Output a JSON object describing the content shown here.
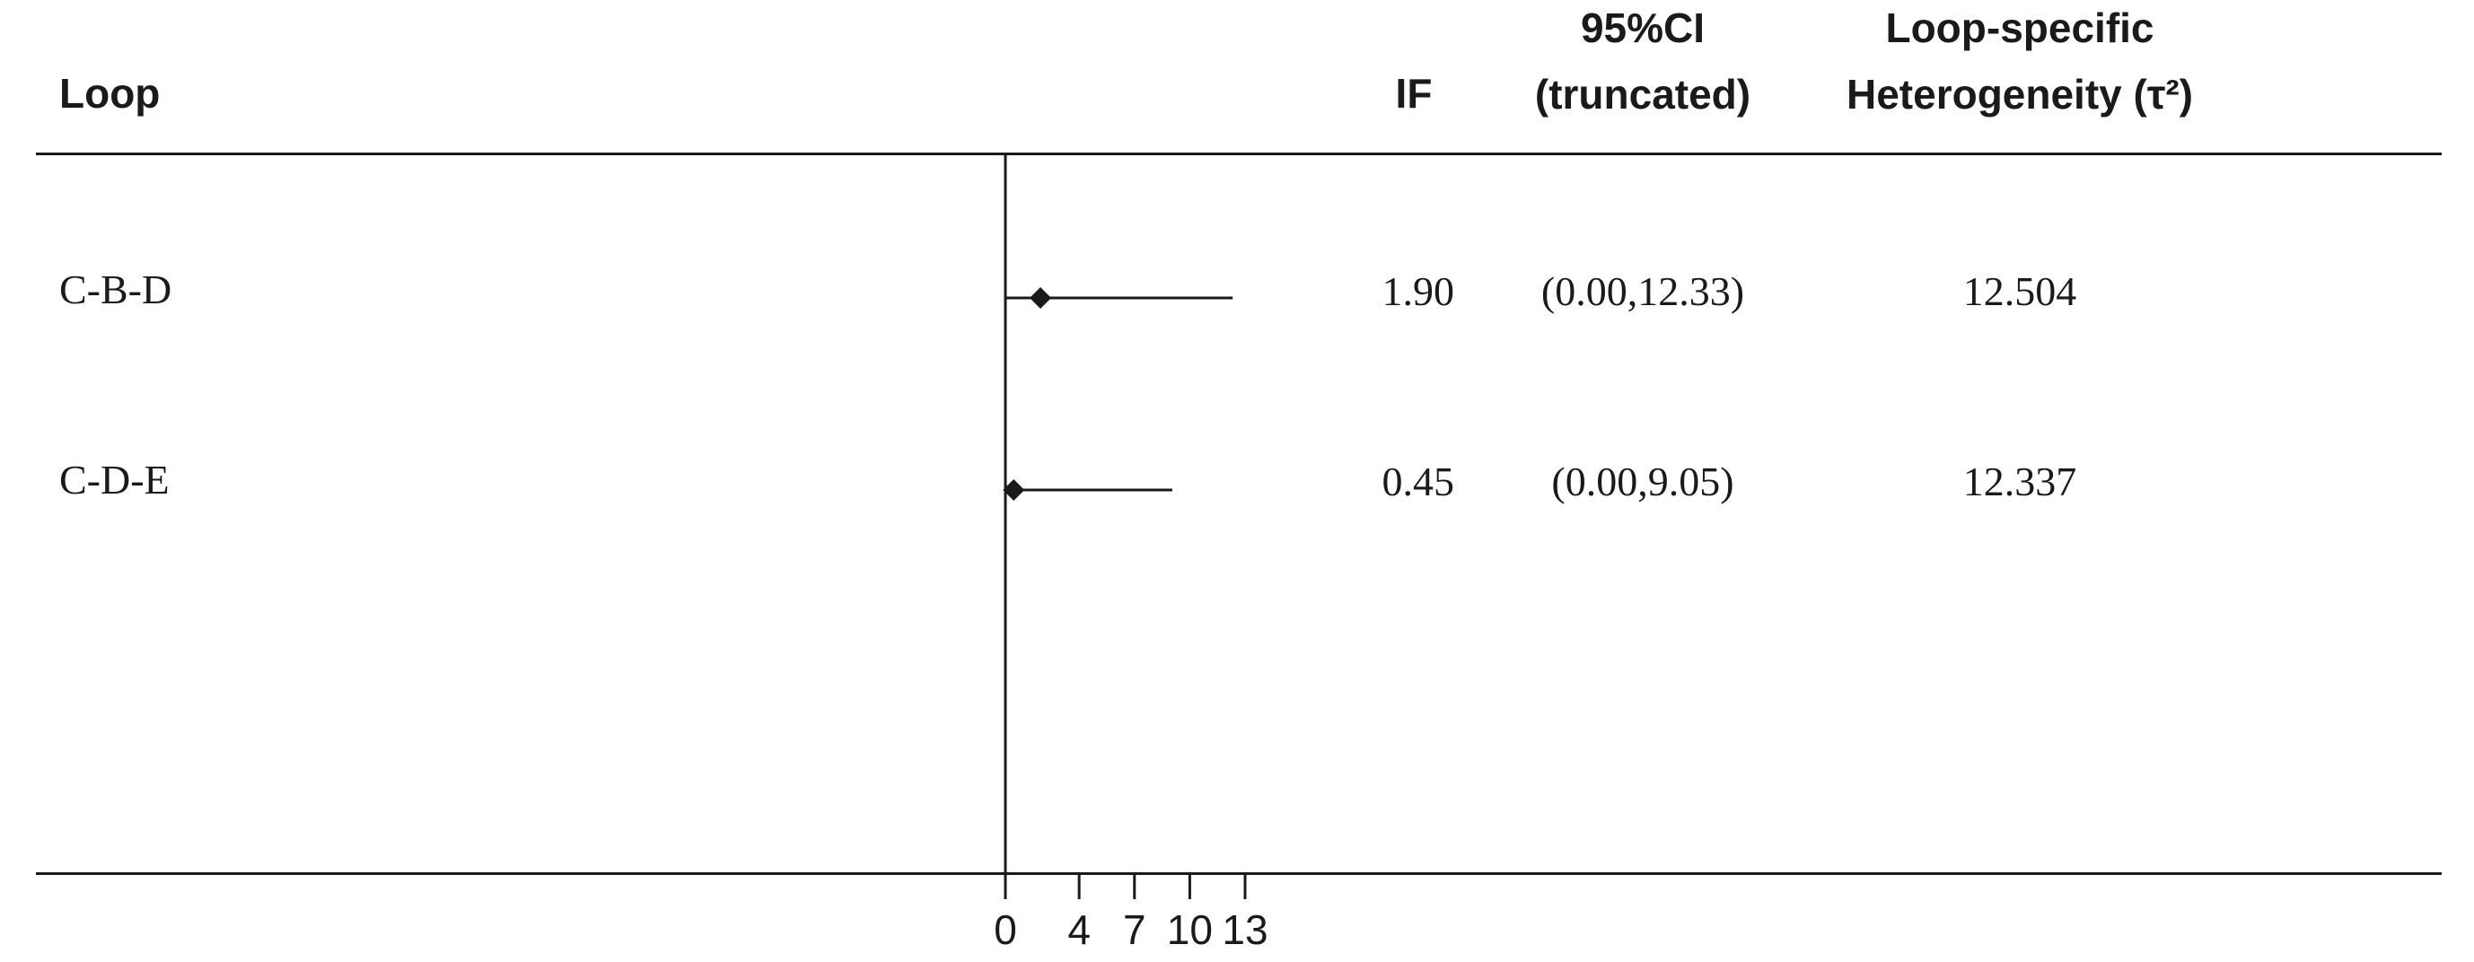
{
  "chart_data": {
    "type": "forest",
    "columns": {
      "loop": "Loop",
      "if": "IF",
      "ci_line1": "95%CI",
      "ci_line2": "(truncated)",
      "het_line1": "Loop-specific",
      "het_line2": "Heterogeneity (τ²)"
    },
    "rows": [
      {
        "loop": "C-B-D",
        "if": 1.9,
        "if_label": "1.90",
        "ci_low": 0.0,
        "ci_high": 12.33,
        "ci_label": "(0.00,12.33)",
        "tau2_label": "12.504"
      },
      {
        "loop": "C-D-E",
        "if": 0.45,
        "if_label": "0.45",
        "ci_low": 0.0,
        "ci_high": 9.05,
        "ci_label": "(0.00,9.05)",
        "tau2_label": "12.337"
      }
    ],
    "x_ticks": [
      0,
      4,
      7,
      10,
      13
    ],
    "x_tick_labels": [
      "0",
      "4",
      "7",
      "10",
      "13"
    ],
    "xlim": [
      0,
      13
    ],
    "reference_line": 0
  }
}
